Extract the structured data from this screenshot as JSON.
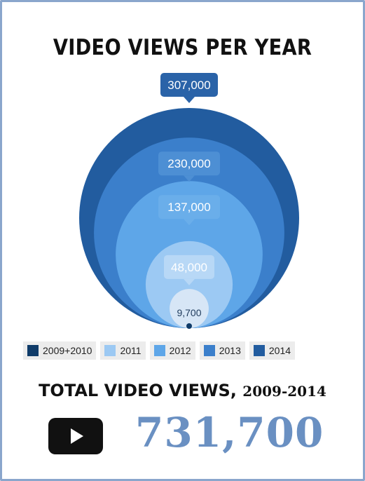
{
  "title": "VIDEO VIEWS PER YEAR",
  "chart_data": {
    "type": "nested-bubble",
    "title": "VIDEO VIEWS PER YEAR",
    "categories": [
      "2009+2010",
      "2011",
      "2012",
      "2013",
      "2014"
    ],
    "values": [
      9700,
      48000,
      137000,
      230000,
      307000
    ],
    "value_labels": [
      "9,700",
      "48,000",
      "137,000",
      "230,000",
      "307,000"
    ],
    "legend": [
      {
        "label": "2009+2010",
        "color": "#0f3b69"
      },
      {
        "label": "2011",
        "color": "#9cc9f3"
      },
      {
        "label": "2012",
        "color": "#5ea6e8"
      },
      {
        "label": "2013",
        "color": "#3b7fcb"
      },
      {
        "label": "2014",
        "color": "#225c9f"
      }
    ],
    "legend_position": "bottom"
  },
  "total": {
    "heading": "TOTAL VIDEO VIEWS,",
    "years": "2009-2014",
    "value": "731,700"
  },
  "icons": {
    "play": "play-icon"
  },
  "colors": {
    "border": "#8aa6cc",
    "total_value": "#6a90c2"
  }
}
